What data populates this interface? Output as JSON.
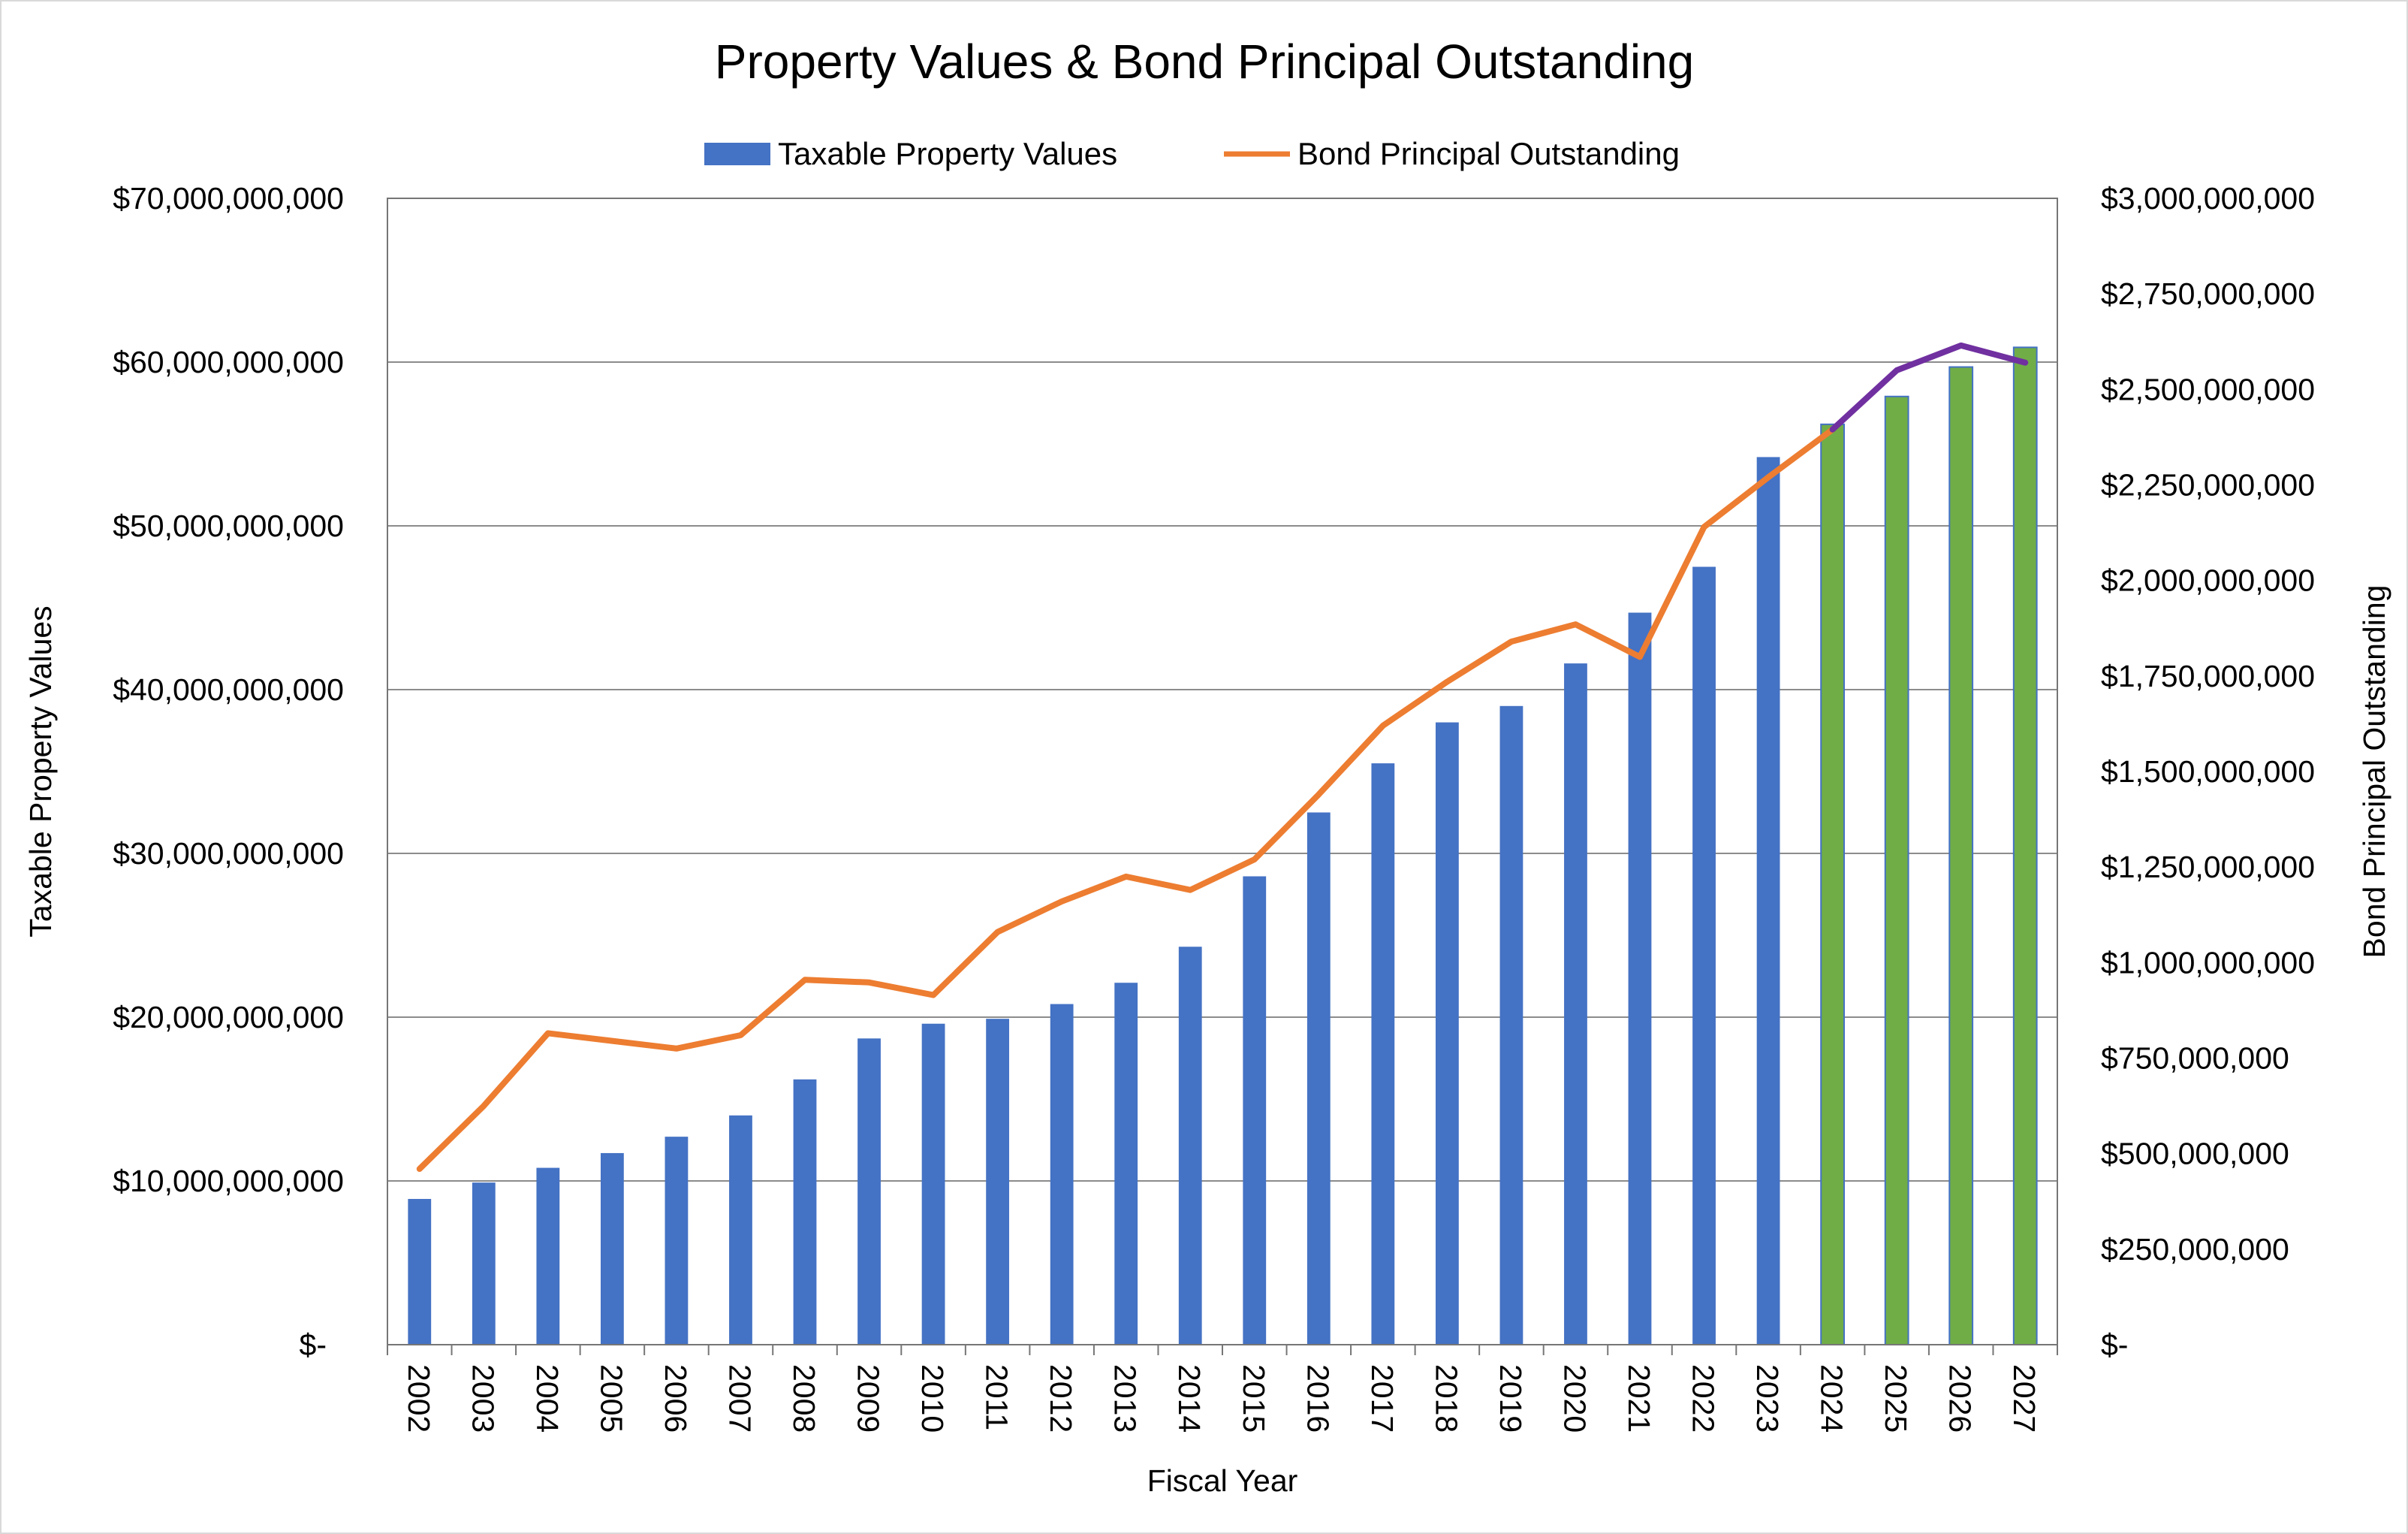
{
  "chart_data": {
    "type": "bar",
    "title": "Property Values & Bond Principal Outstanding",
    "xlabel": "Fiscal Year",
    "ylabel_left": "Taxable Property Values",
    "ylabel_right": "Bond Principal Outstanding",
    "legend_placement": "top",
    "grid": true,
    "categories": [
      "2002",
      "2003",
      "2004",
      "2005",
      "2006",
      "2007",
      "2008",
      "2009",
      "2010",
      "2011",
      "2012",
      "2013",
      "2014",
      "2015",
      "2016",
      "2017",
      "2018",
      "2019",
      "2020",
      "2021",
      "2022",
      "2023",
      "2024",
      "2025",
      "2026",
      "2027"
    ],
    "y_left": {
      "lim": [
        0,
        70000000000
      ],
      "ticks": [
        0,
        10000000000,
        20000000000,
        30000000000,
        40000000000,
        50000000000,
        60000000000,
        70000000000
      ],
      "tick_labels": [
        "$-",
        "$10,000,000,000",
        "$20,000,000,000",
        "$30,000,000,000",
        "$40,000,000,000",
        "$50,000,000,000",
        "$60,000,000,000",
        "$70,000,000,000"
      ]
    },
    "y_right": {
      "lim": [
        0,
        3000000000
      ],
      "ticks": [
        0,
        250000000,
        500000000,
        750000000,
        1000000000,
        1250000000,
        1500000000,
        1750000000,
        2000000000,
        2250000000,
        2500000000,
        2750000000,
        3000000000
      ],
      "tick_labels": [
        "$-",
        "$250,000,000",
        "$500,000,000",
        "$750,000,000",
        "$1,000,000,000",
        "$1,250,000,000",
        "$1,500,000,000",
        "$1,750,000,000",
        "$2,000,000,000",
        "$2,250,000,000",
        "$2,500,000,000",
        "$2,750,000,000",
        "$3,000,000,000"
      ]
    },
    "series": [
      {
        "name": "Taxable Property Values",
        "type": "bar",
        "axis": "left",
        "color": "#4472C4",
        "projected_color": "#70AD47",
        "projected_from_index": 22,
        "values": [
          8900000000,
          9900000000,
          10800000000,
          11700000000,
          12700000000,
          14000000000,
          16200000000,
          18700000000,
          19600000000,
          19900000000,
          20800000000,
          22100000000,
          24300000000,
          28600000000,
          32500000000,
          35500000000,
          38000000000,
          39000000000,
          41600000000,
          44700000000,
          47500000000,
          54200000000,
          56200000000,
          57900000000,
          59700000000,
          60900000000
        ]
      },
      {
        "name": "Bond Principal Outstanding",
        "type": "line",
        "axis": "right",
        "color": "#ED7D31",
        "projected_color": "#7030A0",
        "projected_from_index": 22,
        "values": [
          460000000,
          625000000,
          815000000,
          795000000,
          775000000,
          810000000,
          955000000,
          948000000,
          915000000,
          1080000000,
          1160000000,
          1225000000,
          1190000000,
          1270000000,
          1440000000,
          1620000000,
          1735000000,
          1840000000,
          1885000000,
          1800000000,
          2140000000,
          2270000000,
          2395000000,
          2550000000,
          2615000000,
          2570000000
        ]
      }
    ]
  }
}
